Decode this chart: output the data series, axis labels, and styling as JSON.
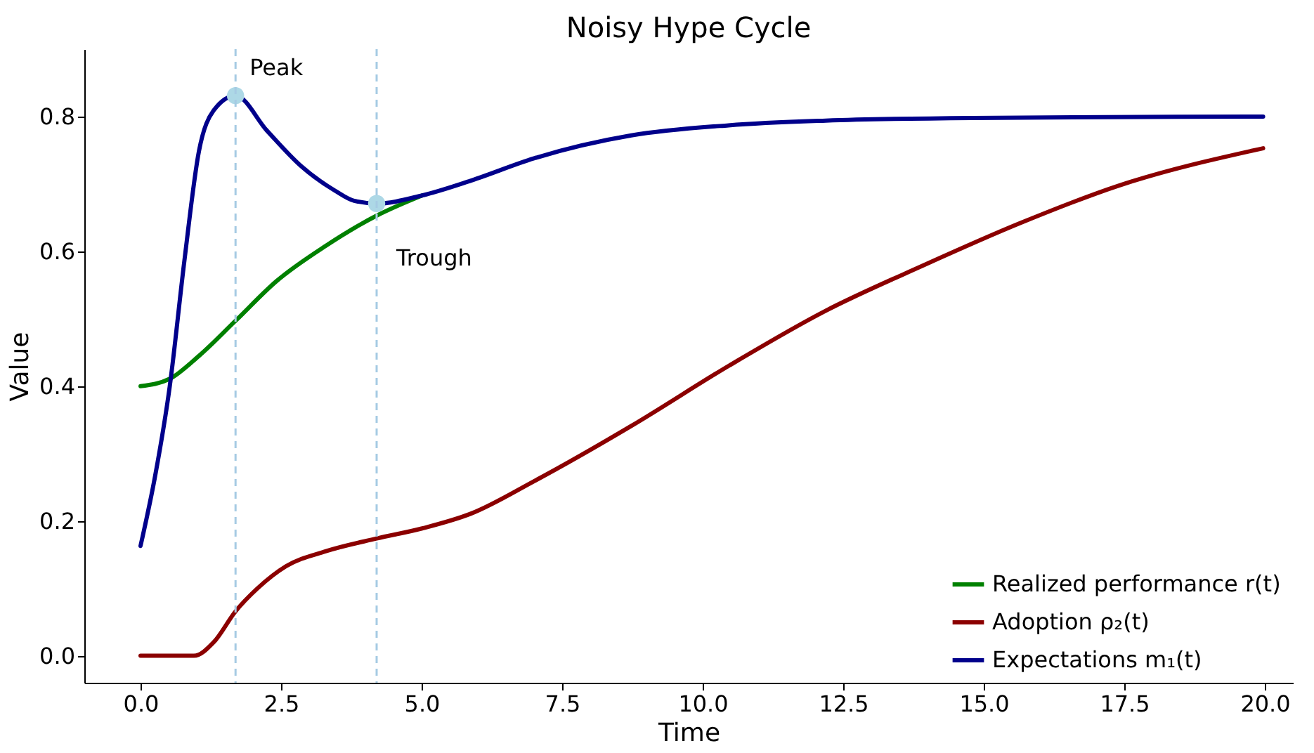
{
  "chart_data": {
    "type": "line",
    "title": "Noisy Hype Cycle",
    "xlabel": "Time",
    "ylabel": "Value",
    "xlim": [
      -1,
      20.5
    ],
    "ylim": [
      -0.04,
      0.9
    ],
    "xticks": [
      {
        "value": 0,
        "label": "0.0"
      },
      {
        "value": 2.5,
        "label": "2.5"
      },
      {
        "value": 5,
        "label": "5.0"
      },
      {
        "value": 7.5,
        "label": "7.5"
      },
      {
        "value": 10,
        "label": "10.0"
      },
      {
        "value": 12.5,
        "label": "12.5"
      },
      {
        "value": 15,
        "label": "15.0"
      },
      {
        "value": 17.5,
        "label": "17.5"
      },
      {
        "value": 20,
        "label": "20.0"
      }
    ],
    "yticks": [
      {
        "value": 0,
        "label": "0.0"
      },
      {
        "value": 0.2,
        "label": "0.2"
      },
      {
        "value": 0.4,
        "label": "0.4"
      },
      {
        "value": 0.6,
        "label": "0.6"
      },
      {
        "value": 0.8,
        "label": "0.8"
      }
    ],
    "grid": false,
    "legend": "bottom right",
    "line_style": "solid",
    "marker": "none",
    "series": [
      {
        "name": "Realized performance r(t)",
        "color": "#008000",
        "x": [
          0,
          0.52,
          1.04,
          1.69,
          2.42,
          3.29,
          4.2,
          5.01
        ],
        "values": [
          0.4,
          0.411,
          0.445,
          0.497,
          0.556,
          0.608,
          0.653,
          0.683
        ]
      },
      {
        "name": "Adoption ρ₂(t)",
        "color": "#8b0000",
        "x": [
          0,
          0.95,
          1.3,
          1.69,
          2.08,
          2.59,
          3.29,
          4.2,
          5.01,
          5.88,
          7.0,
          8.73,
          10.46,
          12.19,
          13.92,
          15.65,
          17.38,
          19.97
        ],
        "values": [
          0.0,
          0.0,
          0.02,
          0.066,
          0.1,
          0.133,
          0.155,
          0.174,
          0.189,
          0.211,
          0.259,
          0.341,
          0.43,
          0.512,
          0.579,
          0.642,
          0.697,
          0.753
        ]
      },
      {
        "name": "Expectations m₁(t)",
        "color": "#00008b",
        "x": [
          0,
          0.26,
          0.52,
          0.78,
          1.04,
          1.3,
          1.69,
          2.25,
          2.85,
          3.46,
          3.8,
          4.2,
          5.01,
          5.88,
          7.0,
          8.73,
          10.46,
          12.19,
          14.79,
          19.97
        ],
        "values": [
          0.163,
          0.267,
          0.4,
          0.586,
          0.749,
          0.809,
          0.831,
          0.779,
          0.727,
          0.69,
          0.675,
          0.671,
          0.683,
          0.705,
          0.738,
          0.772,
          0.787,
          0.794,
          0.798,
          0.8
        ]
      },
      {
        "type": "scatter",
        "marker": "circle",
        "color": "#add8e6",
        "x": [
          1.69,
          4.2
        ],
        "values": [
          0.831,
          0.671
        ]
      }
    ],
    "ref_lines": [
      {
        "axis": "x",
        "value": 1.69,
        "label": "Peak",
        "color": "#a6cbe3",
        "line_style": "dashed"
      },
      {
        "axis": "x",
        "value": 4.2,
        "label": "Trough",
        "color": "#a6cbe3",
        "line_style": "dashed"
      }
    ]
  }
}
